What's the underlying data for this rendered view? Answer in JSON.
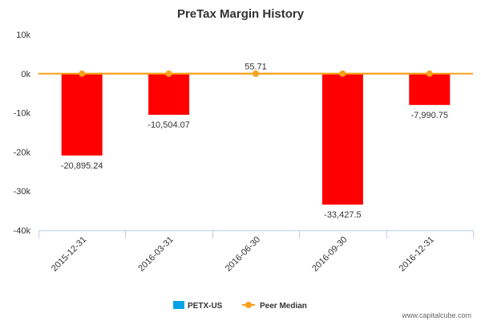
{
  "chart_data": {
    "type": "bar",
    "title": "PreTax Margin History",
    "categories": [
      "2015-12-31",
      "2016-03-31",
      "2016-06-30",
      "2016-09-30",
      "2016-12-31"
    ],
    "series": [
      {
        "name": "PETX-US",
        "type": "bar",
        "values": [
          -20895.24,
          -10504.07,
          55.71,
          -33427.5,
          -7990.75
        ],
        "labels": [
          "-20,895.24",
          "-10,504.07",
          "55.71",
          "-33,427.5",
          "-7,990.75"
        ],
        "legend_color": "#00A2E8",
        "positive_color": "#00A2E8",
        "negative_color": "#FF0000"
      },
      {
        "name": "Peer Median",
        "type": "line",
        "values": [
          0,
          0,
          0,
          0,
          0
        ],
        "color": "#F7A21B"
      }
    ],
    "ylim": [
      -40000,
      10000
    ],
    "yticks": [
      10000,
      0,
      -10000,
      -20000,
      -30000,
      -40000
    ],
    "ytick_labels": [
      "10k",
      "0k",
      "-10k",
      "-20k",
      "-30k",
      "-40k"
    ],
    "xlabel": "",
    "ylabel": "",
    "grid": false,
    "legend_position": "bottom-center"
  },
  "watermark": "www.capitalcube.com"
}
